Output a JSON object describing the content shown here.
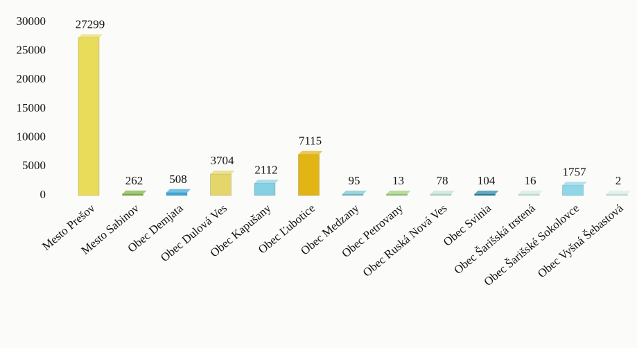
{
  "chart_data": {
    "type": "bar",
    "categories": [
      "Mesto Prešov",
      "Mesto Sabinov",
      "Obec Demjata",
      "Obec Dulová Ves",
      "Obec Kapušany",
      "Obec Ľubotice",
      "Obec Medzany",
      "Obec Petrovany",
      "Obec Ruská Nová Ves",
      "Obec Svinia",
      "Obec Šarišská trstená",
      "Obec Šarišské Sokolovce",
      "Obec Vyšná Šebastová"
    ],
    "values": [
      27299,
      262,
      508,
      3704,
      2112,
      7115,
      95,
      13,
      78,
      104,
      16,
      1757,
      2
    ],
    "colors": [
      "#e9dc5a",
      "#78b440",
      "#3aa6da",
      "#e4d66a",
      "#84d0e2",
      "#e2b414",
      "#74c6d2",
      "#9ccf7c",
      "#bfe2d8",
      "#2585a8",
      "#cdebe6",
      "#8ed6e8",
      "#d6eeea"
    ],
    "ylim": [
      0,
      30000
    ],
    "yticks": [
      0,
      5000,
      10000,
      15000,
      20000,
      25000,
      30000
    ]
  }
}
